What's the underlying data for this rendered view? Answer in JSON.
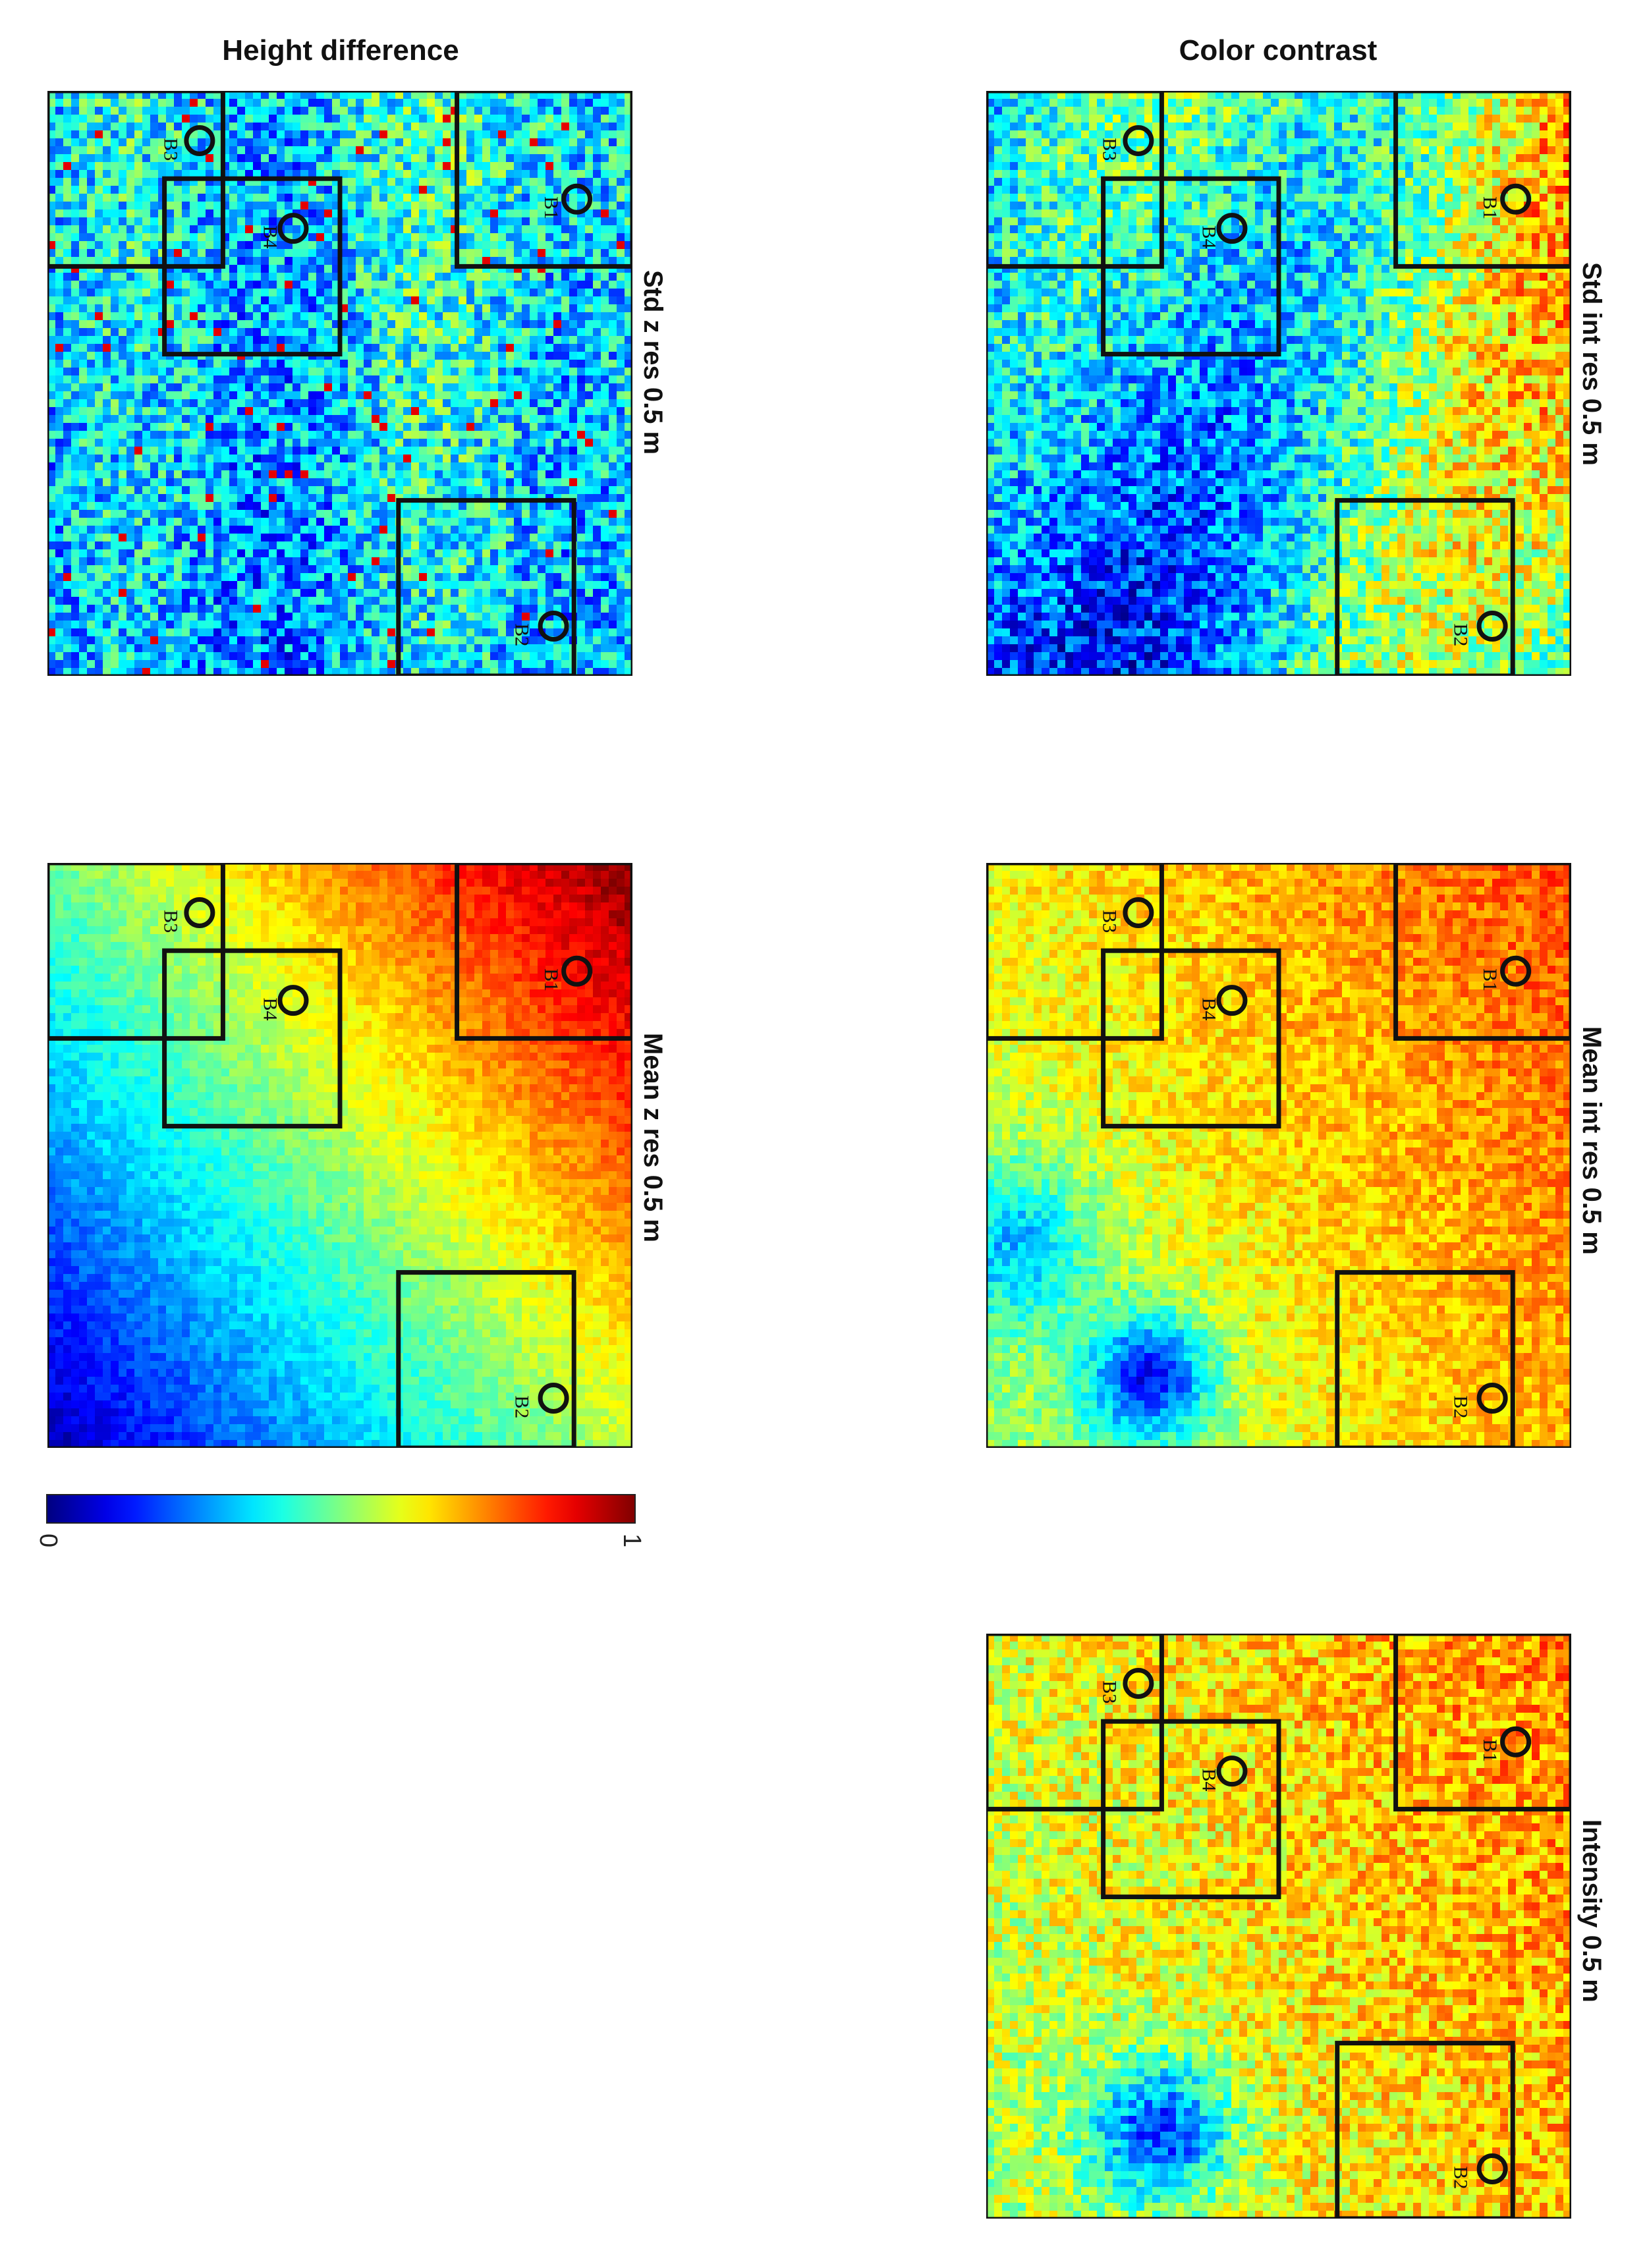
{
  "columns": [
    {
      "title": "Color contrast"
    },
    {
      "title": "Height difference"
    }
  ],
  "colorbar": {
    "min_label": "0",
    "max_label": "1",
    "colormap": "jet",
    "stops": [
      "#00008f",
      "#0000ff",
      "#00ffff",
      "#ffff00",
      "#ff0000",
      "#800000"
    ]
  },
  "boxes": [
    "B1",
    "B2",
    "B3",
    "B4"
  ],
  "chart_data": [
    {
      "type": "heatmap",
      "title": "Std int res 0.5 m",
      "column": "Color contrast",
      "row": 1,
      "color_range": [
        0,
        1
      ],
      "colormap": "jet",
      "rotated": "90deg clockwise",
      "regions": [
        "B1",
        "B2",
        "B3",
        "B4"
      ],
      "typical_values": {
        "B1": 0.75,
        "B2": 0.35,
        "B3": 0.2,
        "B4": 0.45,
        "background": 0.45
      }
    },
    {
      "type": "heatmap",
      "title": "Mean int res 0.5 m",
      "column": "Color contrast",
      "row": 2,
      "color_range": [
        0,
        1
      ],
      "colormap": "jet",
      "rotated": "90deg clockwise",
      "regions": [
        "B1",
        "B2",
        "B3",
        "B4"
      ],
      "typical_values": {
        "B1": 0.75,
        "B2": 0.6,
        "B3": 0.62,
        "B4": 0.78,
        "background": 0.6
      }
    },
    {
      "type": "heatmap",
      "title": "Intensity 0.5 m",
      "column": "Color contrast",
      "row": 3,
      "color_range": [
        0,
        1
      ],
      "colormap": "jet",
      "rotated": "90deg clockwise",
      "regions": [
        "B1",
        "B2",
        "B3",
        "B4"
      ],
      "typical_values": {
        "B1": 0.78,
        "B2": 0.6,
        "B3": 0.62,
        "B4": 0.75,
        "background": 0.6
      }
    },
    {
      "type": "heatmap",
      "title": "Std z res 0.5 m",
      "column": "Height difference",
      "row": 1,
      "color_range": [
        0,
        1
      ],
      "colormap": "jet",
      "rotated": "90deg clockwise",
      "regions": [
        "B1",
        "B2",
        "B3",
        "B4"
      ],
      "typical_values": {
        "B1": 0.4,
        "B2": 0.3,
        "B3": 0.25,
        "B4": 0.35,
        "background": 0.35
      }
    },
    {
      "type": "heatmap",
      "title": "Mean z res 0.5 m",
      "column": "Height difference",
      "row": 2,
      "color_range": [
        0,
        1
      ],
      "colormap": "jet",
      "rotated": "90deg clockwise",
      "regions": [
        "B1",
        "B2",
        "B3",
        "B4"
      ],
      "typical_values": {
        "B1": 0.85,
        "B2": 0.5,
        "B3": 0.65,
        "B4": 0.72,
        "background": 0.55
      }
    }
  ]
}
